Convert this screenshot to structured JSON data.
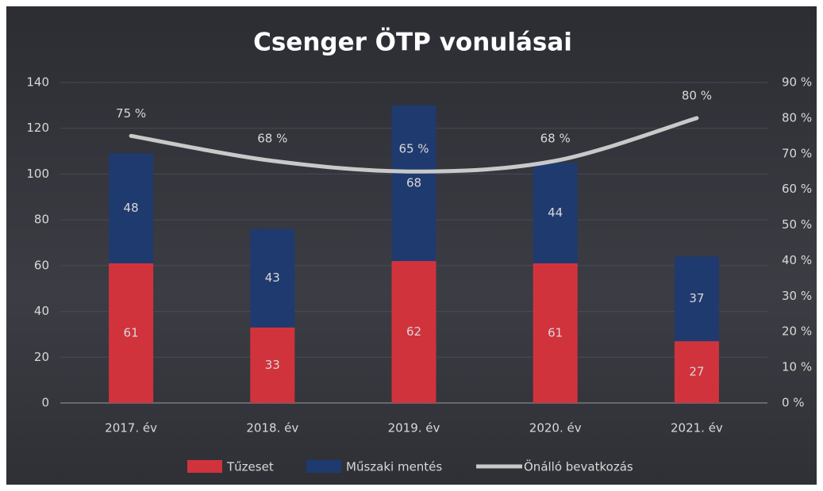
{
  "chart_data": {
    "type": "bar",
    "stacked": true,
    "title": "Csenger ÖTP vonulásai",
    "categories": [
      "2017. év",
      "2018. év",
      "2019. év",
      "2020. év",
      "2021. év"
    ],
    "series": [
      {
        "name": "Tűzeset",
        "color": "#d1333d",
        "values": [
          61,
          33,
          62,
          61,
          27
        ]
      },
      {
        "name": "Műszaki mentés",
        "color": "#1f3a6e",
        "values": [
          48,
          43,
          68,
          44,
          37
        ]
      },
      {
        "name": "Önálló bevatkozás",
        "type": "line",
        "axis": "y2",
        "color": "#c9c9c9",
        "values": [
          75,
          68,
          65,
          68,
          80
        ],
        "value_labels": [
          "75 %",
          "68 %",
          "65 %",
          "68 %",
          "80 %"
        ]
      }
    ],
    "ylim": [
      0,
      140
    ],
    "yticks": [
      0,
      20,
      40,
      60,
      80,
      100,
      120,
      140
    ],
    "y2lim": [
      0,
      90
    ],
    "y2ticks": [
      {
        "value": 0,
        "label": "0 %"
      },
      {
        "value": 10,
        "label": "10 %"
      },
      {
        "value": 20,
        "label": "20 %"
      },
      {
        "value": 30,
        "label": "30 %"
      },
      {
        "value": 40,
        "label": "40 %"
      },
      {
        "value": 50,
        "label": "50 %"
      },
      {
        "value": 60,
        "label": "60 %"
      },
      {
        "value": 70,
        "label": "70 %"
      },
      {
        "value": 80,
        "label": "80 %"
      },
      {
        "value": 90,
        "label": "90 %"
      }
    ],
    "grid": true,
    "legend": "bottom"
  }
}
